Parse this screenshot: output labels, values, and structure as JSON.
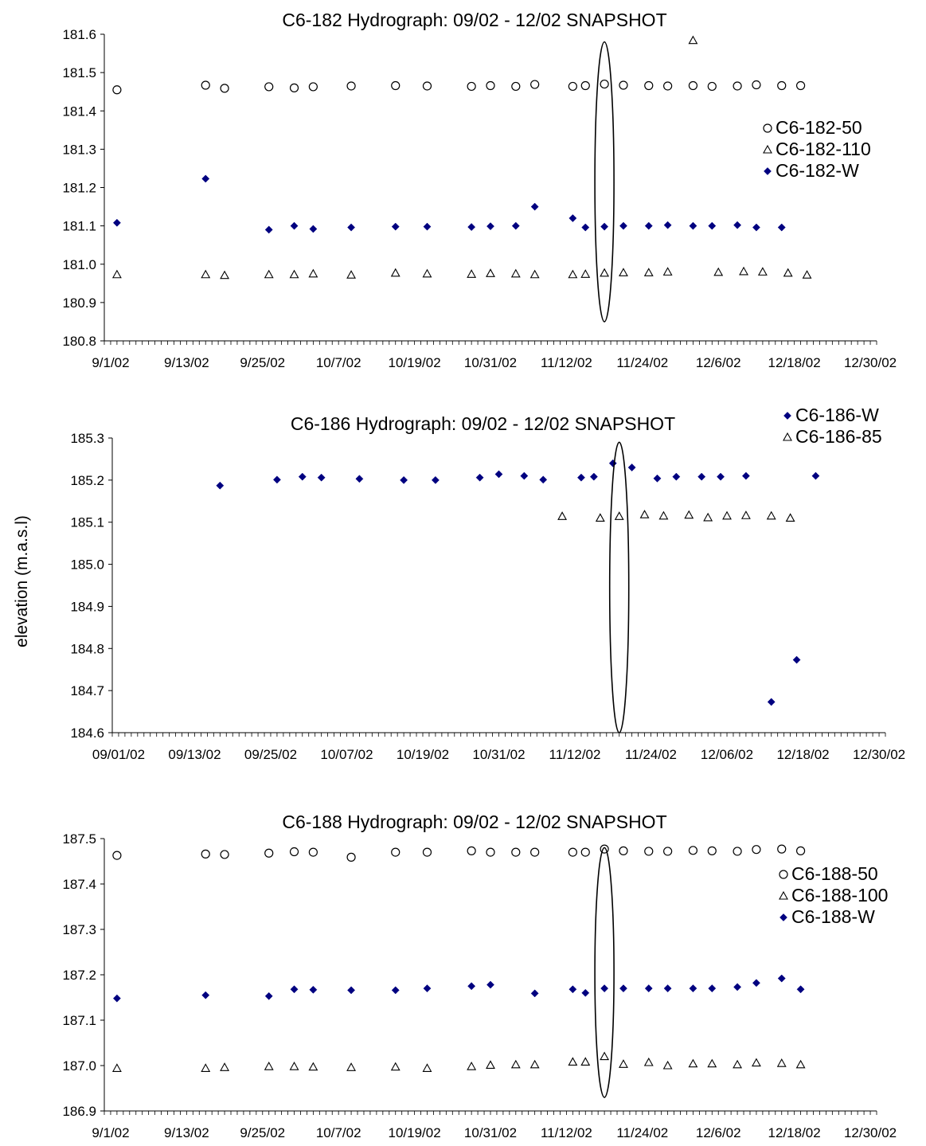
{
  "y_axis_label": "elevation (m.a.s.l)",
  "colors": {
    "water": "#000080",
    "marker_stroke": "#000000",
    "axis": "#000000"
  },
  "chart_data": [
    {
      "type": "scatter",
      "title": "C6-182 Hydrograph: 09/02 - 12/02 SNAPSHOT",
      "xlabel": "",
      "ylabel": "elevation (m.a.s.l)",
      "x_ticks": [
        "9/1/02",
        "9/13/02",
        "9/25/02",
        "10/7/02",
        "10/19/02",
        "10/31/02",
        "11/12/02",
        "11/24/02",
        "12/6/02",
        "12/18/02",
        "12/30/02"
      ],
      "xlim": [
        "2002-08-31",
        "2002-12-31"
      ],
      "y_ticks": [
        "180.8",
        "180.9",
        "181.0",
        "181.1",
        "181.2",
        "181.3",
        "181.4",
        "181.5",
        "181.6"
      ],
      "ylim": [
        180.8,
        181.6
      ],
      "grid": false,
      "legend_position": "right",
      "highlight_ellipse": {
        "x": "2002-11-18",
        "y_min": 180.85,
        "y_max": 181.58
      },
      "series": [
        {
          "name": "C6-182-50",
          "marker": "circle",
          "x": [
            "2002-09-02",
            "2002-09-16",
            "2002-09-19",
            "2002-09-26",
            "2002-09-30",
            "2002-10-03",
            "2002-10-09",
            "2002-10-16",
            "2002-10-21",
            "2002-10-28",
            "2002-10-31",
            "2002-11-04",
            "2002-11-07",
            "2002-11-13",
            "2002-11-15",
            "2002-11-18",
            "2002-11-21",
            "2002-11-25",
            "2002-11-28",
            "2002-12-02",
            "2002-12-05",
            "2002-12-09",
            "2002-12-12",
            "2002-12-16",
            "2002-12-19"
          ],
          "y": [
            181.455,
            181.467,
            181.459,
            181.463,
            181.46,
            181.463,
            181.465,
            181.466,
            181.465,
            181.464,
            181.466,
            181.464,
            181.469,
            181.464,
            181.466,
            181.47,
            181.467,
            181.466,
            181.465,
            181.466,
            181.464,
            181.465,
            181.468,
            181.466,
            181.466
          ]
        },
        {
          "name": "C6-182-110",
          "marker": "triangle",
          "x": [
            "2002-09-02",
            "2002-09-16",
            "2002-09-19",
            "2002-09-26",
            "2002-09-30",
            "2002-10-03",
            "2002-10-09",
            "2002-10-16",
            "2002-10-21",
            "2002-10-28",
            "2002-10-31",
            "2002-11-04",
            "2002-11-07",
            "2002-11-13",
            "2002-11-15",
            "2002-11-18",
            "2002-11-21",
            "2002-11-25",
            "2002-11-28",
            "2002-12-02",
            "2002-12-06",
            "2002-12-10",
            "2002-12-13",
            "2002-12-17",
            "2002-12-20"
          ],
          "y": [
            180.973,
            180.973,
            180.971,
            180.973,
            180.973,
            180.975,
            180.972,
            180.977,
            180.975,
            180.974,
            180.976,
            180.975,
            180.973,
            180.973,
            180.974,
            180.977,
            180.978,
            180.978,
            180.98,
            181.584,
            180.979,
            180.981,
            180.98,
            180.977,
            180.972
          ]
        },
        {
          "name": "C6-182-W",
          "marker": "diamond",
          "x": [
            "2002-09-02",
            "2002-09-16",
            "2002-09-26",
            "2002-09-30",
            "2002-10-03",
            "2002-10-09",
            "2002-10-16",
            "2002-10-21",
            "2002-10-28",
            "2002-10-31",
            "2002-11-04",
            "2002-11-07",
            "2002-11-13",
            "2002-11-15",
            "2002-11-18",
            "2002-11-21",
            "2002-11-25",
            "2002-11-28",
            "2002-12-02",
            "2002-12-05",
            "2002-12-09",
            "2002-12-12",
            "2002-12-16"
          ],
          "y": [
            181.108,
            181.223,
            181.09,
            181.1,
            181.092,
            181.096,
            181.098,
            181.098,
            181.097,
            181.099,
            181.1,
            181.15,
            181.12,
            181.096,
            181.098,
            181.1,
            181.1,
            181.102,
            181.1,
            181.1,
            181.102,
            181.096,
            181.096
          ]
        }
      ]
    },
    {
      "type": "scatter",
      "title": "C6-186 Hydrograph: 09/02 - 12/02 SNAPSHOT",
      "xlabel": "",
      "ylabel": "elevation (m.a.s.l)",
      "x_ticks": [
        "09/01/02",
        "09/13/02",
        "09/25/02",
        "10/07/02",
        "10/19/02",
        "10/31/02",
        "11/12/02",
        "11/24/02",
        "12/06/02",
        "12/18/02",
        "12/30/02"
      ],
      "xlim": [
        "2002-08-31",
        "2002-12-31"
      ],
      "y_ticks": [
        "184.6",
        "184.7",
        "184.8",
        "184.9",
        "185.0",
        "185.1",
        "185.2",
        "185.3"
      ],
      "ylim": [
        184.6,
        185.3
      ],
      "grid": false,
      "legend_position": "top-right",
      "highlight_ellipse": {
        "x": "2002-11-19",
        "y_min": 184.6,
        "y_max": 185.29
      },
      "series": [
        {
          "name": "C6-186-W",
          "marker": "diamond",
          "x": [
            "2002-09-17",
            "2002-09-26",
            "2002-09-30",
            "2002-10-03",
            "2002-10-09",
            "2002-10-16",
            "2002-10-21",
            "2002-10-28",
            "2002-10-31",
            "2002-11-04",
            "2002-11-07",
            "2002-11-13",
            "2002-11-15",
            "2002-11-18",
            "2002-11-21",
            "2002-11-25",
            "2002-11-28",
            "2002-12-02",
            "2002-12-05",
            "2002-12-09",
            "2002-12-13",
            "2002-12-17",
            "2002-12-20"
          ],
          "y": [
            185.187,
            185.201,
            185.208,
            185.206,
            185.203,
            185.2,
            185.2,
            185.206,
            185.214,
            185.21,
            185.201,
            185.206,
            185.208,
            185.24,
            185.23,
            185.204,
            185.208,
            185.208,
            185.208,
            185.21,
            184.673,
            184.773,
            185.21
          ]
        },
        {
          "name": "C6-186-85",
          "marker": "triangle",
          "x": [
            "2002-11-10",
            "2002-11-16",
            "2002-11-19",
            "2002-11-23",
            "2002-11-26",
            "2002-11-30",
            "2002-12-03",
            "2002-12-06",
            "2002-12-09",
            "2002-12-13",
            "2002-12-16"
          ],
          "y": [
            185.114,
            185.11,
            185.114,
            185.118,
            185.115,
            185.117,
            185.111,
            185.115,
            185.116,
            185.115,
            185.11
          ]
        }
      ]
    },
    {
      "type": "scatter",
      "title": "C6-188 Hydrograph: 09/02 - 12/02 SNAPSHOT",
      "xlabel": "",
      "ylabel": "elevation (m.a.s.l)",
      "x_ticks": [
        "9/1/02",
        "9/13/02",
        "9/25/02",
        "10/7/02",
        "10/19/02",
        "10/31/02",
        "11/12/02",
        "11/24/02",
        "12/6/02",
        "12/18/02",
        "12/30/02"
      ],
      "xlim": [
        "2002-08-31",
        "2002-12-31"
      ],
      "y_ticks": [
        "186.9",
        "187.0",
        "187.1",
        "187.2",
        "187.3",
        "187.4",
        "187.5"
      ],
      "ylim": [
        186.9,
        187.5
      ],
      "grid": false,
      "legend_position": "right",
      "highlight_ellipse": {
        "x": "2002-11-18",
        "y_min": 186.93,
        "y_max": 187.48
      },
      "series": [
        {
          "name": "C6-188-50",
          "marker": "circle",
          "x": [
            "2002-09-02",
            "2002-09-16",
            "2002-09-19",
            "2002-09-26",
            "2002-09-30",
            "2002-10-03",
            "2002-10-09",
            "2002-10-16",
            "2002-10-21",
            "2002-10-28",
            "2002-10-31",
            "2002-11-04",
            "2002-11-07",
            "2002-11-13",
            "2002-11-15",
            "2002-11-18",
            "2002-11-21",
            "2002-11-25",
            "2002-11-28",
            "2002-12-02",
            "2002-12-05",
            "2002-12-09",
            "2002-12-12",
            "2002-12-16",
            "2002-12-19"
          ],
          "y": [
            187.463,
            187.466,
            187.465,
            187.468,
            187.471,
            187.47,
            187.459,
            187.47,
            187.47,
            187.473,
            187.47,
            187.47,
            187.47,
            187.47,
            187.47,
            187.477,
            187.473,
            187.472,
            187.472,
            187.474,
            187.473,
            187.472,
            187.476,
            187.477,
            187.473
          ]
        },
        {
          "name": "C6-188-100",
          "marker": "triangle",
          "x": [
            "2002-09-02",
            "2002-09-16",
            "2002-09-19",
            "2002-09-26",
            "2002-09-30",
            "2002-10-03",
            "2002-10-09",
            "2002-10-16",
            "2002-10-21",
            "2002-10-28",
            "2002-10-31",
            "2002-11-04",
            "2002-11-07",
            "2002-11-13",
            "2002-11-15",
            "2002-11-18",
            "2002-11-21",
            "2002-11-25",
            "2002-11-28",
            "2002-12-02",
            "2002-12-05",
            "2002-12-09",
            "2002-12-12",
            "2002-12-16",
            "2002-12-19"
          ],
          "y": [
            186.994,
            186.994,
            186.996,
            186.998,
            186.998,
            186.997,
            186.996,
            186.997,
            186.994,
            186.998,
            187.001,
            187.002,
            187.002,
            187.008,
            187.008,
            187.02,
            187.003,
            187.007,
            187.0,
            187.004,
            187.004,
            187.002,
            187.006,
            187.005,
            187.002
          ]
        },
        {
          "name": "C6-188-W",
          "marker": "diamond",
          "x": [
            "2002-09-02",
            "2002-09-16",
            "2002-09-26",
            "2002-09-30",
            "2002-10-03",
            "2002-10-09",
            "2002-10-16",
            "2002-10-21",
            "2002-10-28",
            "2002-10-31",
            "2002-11-07",
            "2002-11-13",
            "2002-11-15",
            "2002-11-18",
            "2002-11-21",
            "2002-11-25",
            "2002-11-28",
            "2002-12-02",
            "2002-12-05",
            "2002-12-09",
            "2002-12-12",
            "2002-12-16",
            "2002-12-19"
          ],
          "y": [
            187.148,
            187.155,
            187.153,
            187.168,
            187.167,
            187.166,
            187.166,
            187.17,
            187.175,
            187.178,
            187.159,
            187.168,
            187.16,
            187.17,
            187.17,
            187.17,
            187.17,
            187.17,
            187.17,
            187.173,
            187.182,
            187.192,
            187.168
          ]
        }
      ]
    }
  ]
}
